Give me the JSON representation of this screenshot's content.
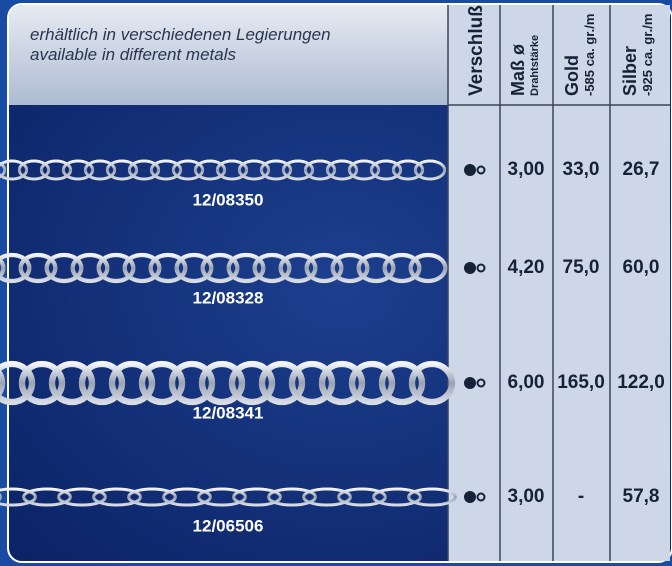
{
  "header": {
    "line1": "erhältlich in verschiedenen Legierungen",
    "line2": "available in different metals"
  },
  "columns": [
    {
      "title": "Verschluß"
    },
    {
      "title": "Maß ø",
      "subtitle": "Drahtstärke"
    },
    {
      "title": "Gold",
      "subtitle": "-585 ca. gr./m"
    },
    {
      "title": "Silber",
      "subtitle": "-925 ca. gr./m"
    }
  ],
  "rows": [
    {
      "code": "12/08350",
      "mass": "3,00",
      "gold": "33,0",
      "silber": "26,7"
    },
    {
      "code": "12/08328",
      "mass": "4,20",
      "gold": "75,0",
      "silber": "60,0"
    },
    {
      "code": "12/08341",
      "mass": "6,00",
      "gold": "165,0",
      "silber": "122,0"
    },
    {
      "code": "12/06506",
      "mass": "3,00",
      "gold": "-",
      "silber": "57,8"
    }
  ]
}
